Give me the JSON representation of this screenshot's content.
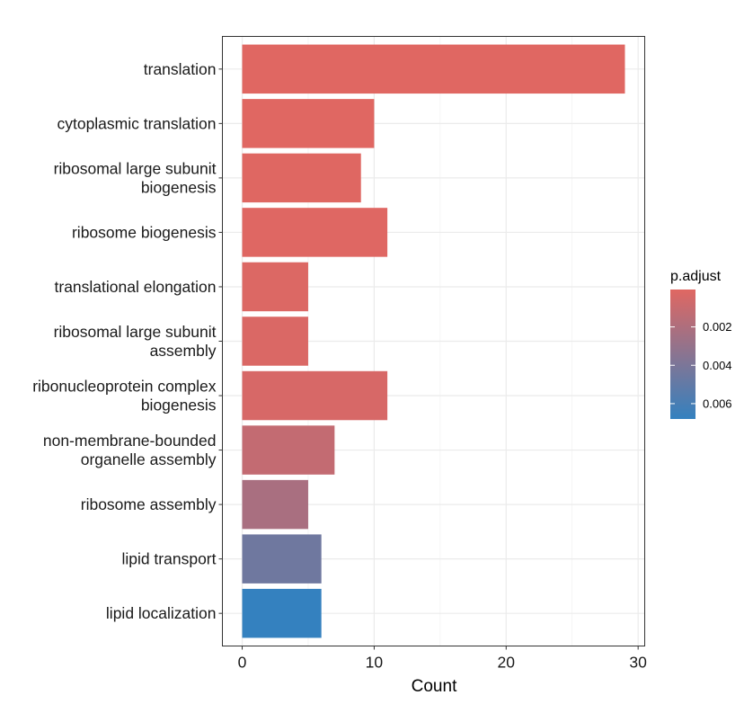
{
  "chart_data": {
    "type": "bar",
    "orientation": "horizontal",
    "categories": [
      [
        "translation"
      ],
      [
        "cytoplasmic translation"
      ],
      [
        "ribosomal large subunit",
        "biogenesis"
      ],
      [
        "ribosome biogenesis"
      ],
      [
        "translational elongation"
      ],
      [
        "ribosomal large subunit",
        "assembly"
      ],
      [
        "ribonucleoprotein complex",
        "biogenesis"
      ],
      [
        "non-membrane-bounded",
        "organelle assembly"
      ],
      [
        "ribosome assembly"
      ],
      [
        "lipid transport"
      ],
      [
        "lipid localization"
      ]
    ],
    "values": [
      29,
      10,
      9,
      11,
      5,
      5,
      11,
      7,
      5,
      6,
      6
    ],
    "p_adjust": [
      5e-05,
      5e-05,
      8e-05,
      0.0001,
      0.0002,
      0.0003,
      0.0004,
      0.0012,
      0.0022,
      0.0045,
      0.0068
    ],
    "xlabel": "Count",
    "ylabel": "",
    "xlim": [
      -1.5,
      30.5
    ],
    "xticks": [
      0,
      10,
      20,
      30
    ],
    "grid": true,
    "legend": {
      "title": "p.adjust",
      "placement": "right",
      "range": [
        5e-05,
        0.0068
      ],
      "ticks": [
        0.002,
        0.004,
        0.006
      ],
      "tick_labels": [
        "0.002",
        "0.004",
        "0.006"
      ],
      "low_color": "#e06762",
      "high_color": "#3481bf"
    }
  }
}
